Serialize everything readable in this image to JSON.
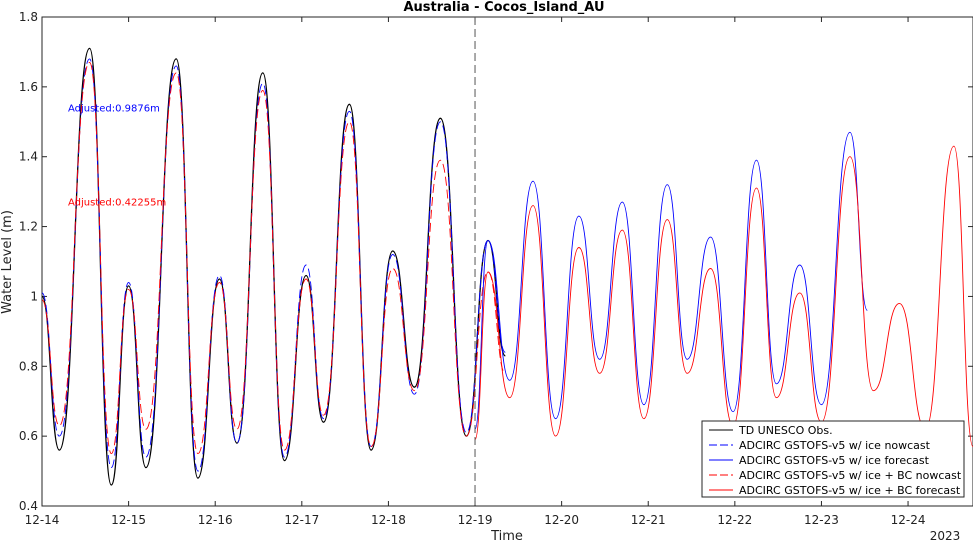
{
  "chart_data": {
    "type": "line",
    "title": "Australia - Cocos_Island_AU",
    "xlabel": "Time",
    "ylabel": "Water Level (m)",
    "xlim": [
      0,
      10.75
    ],
    "ylim": [
      0.4,
      1.8
    ],
    "x_ticks": [
      {
        "value": 0,
        "label": "12-14"
      },
      {
        "value": 1,
        "label": "12-15"
      },
      {
        "value": 2,
        "label": "12-16"
      },
      {
        "value": 3,
        "label": "12-17"
      },
      {
        "value": 4,
        "label": "12-18"
      },
      {
        "value": 5,
        "label": "12-19"
      },
      {
        "value": 6,
        "label": "12-20"
      },
      {
        "value": 7,
        "label": "12-21"
      },
      {
        "value": 8,
        "label": "12-22"
      },
      {
        "value": 9,
        "label": "12-23"
      },
      {
        "value": 10,
        "label": "12-24"
      }
    ],
    "x_year_label": "2023",
    "y_ticks": [
      {
        "value": 0.4,
        "label": "0.4"
      },
      {
        "value": 0.6,
        "label": "0.6"
      },
      {
        "value": 0.8,
        "label": "0.8"
      },
      {
        "value": 1.0,
        "label": "1"
      },
      {
        "value": 1.2,
        "label": "1.2"
      },
      {
        "value": 1.4,
        "label": "1.4"
      },
      {
        "value": 1.6,
        "label": "1.6"
      },
      {
        "value": 1.8,
        "label": "1.8"
      }
    ],
    "nowcast_forecast_split": 5.0,
    "annotations": [
      {
        "text": "Adjusted:0.9876m",
        "x": 0.3,
        "y": 1.53,
        "color": "#0000ff"
      },
      {
        "text": "Adjusted:0.42255m",
        "x": 0.3,
        "y": 1.26,
        "color": "#ff0000"
      }
    ],
    "series": [
      {
        "name": "TD UNESCO Obs.",
        "color": "#000000",
        "dash": "solid",
        "points": [
          [
            0.0,
            1.0
          ],
          [
            0.2,
            0.56
          ],
          [
            0.55,
            1.71
          ],
          [
            0.8,
            0.46
          ],
          [
            1.0,
            1.03
          ],
          [
            1.2,
            0.51
          ],
          [
            1.55,
            1.68
          ],
          [
            1.8,
            0.48
          ],
          [
            2.05,
            1.05
          ],
          [
            2.25,
            0.58
          ],
          [
            2.55,
            1.64
          ],
          [
            2.8,
            0.53
          ],
          [
            3.05,
            1.06
          ],
          [
            3.25,
            0.64
          ],
          [
            3.55,
            1.55
          ],
          [
            3.8,
            0.56
          ],
          [
            4.05,
            1.13
          ],
          [
            4.3,
            0.74
          ],
          [
            4.6,
            1.51
          ],
          [
            4.9,
            0.6
          ],
          [
            5.15,
            1.16
          ],
          [
            5.35,
            0.83
          ]
        ]
      },
      {
        "name": "ADCIRC GSTOFS-v5 w/ ice nowcast",
        "color": "#0000ff",
        "dash": "dashed",
        "points": [
          [
            0.0,
            1.01
          ],
          [
            0.2,
            0.6
          ],
          [
            0.55,
            1.68
          ],
          [
            0.8,
            0.51
          ],
          [
            1.0,
            1.04
          ],
          [
            1.2,
            0.54
          ],
          [
            1.55,
            1.66
          ],
          [
            1.8,
            0.5
          ],
          [
            2.05,
            1.06
          ],
          [
            2.25,
            0.58
          ],
          [
            2.55,
            1.61
          ],
          [
            2.8,
            0.54
          ],
          [
            3.05,
            1.09
          ],
          [
            3.25,
            0.65
          ],
          [
            3.55,
            1.53
          ],
          [
            3.8,
            0.57
          ],
          [
            4.05,
            1.12
          ],
          [
            4.3,
            0.72
          ],
          [
            4.6,
            1.5
          ],
          [
            4.9,
            0.61
          ],
          [
            5.15,
            1.16
          ],
          [
            5.35,
            0.84
          ]
        ]
      },
      {
        "name": "ADCIRC GSTOFS-v5 w/ ice forecast",
        "color": "#0000ff",
        "dash": "solid",
        "points": [
          [
            5.0,
            0.62
          ],
          [
            5.15,
            1.16
          ],
          [
            5.4,
            0.76
          ],
          [
            5.67,
            1.33
          ],
          [
            5.93,
            0.65
          ],
          [
            6.2,
            1.23
          ],
          [
            6.44,
            0.82
          ],
          [
            6.7,
            1.27
          ],
          [
            6.95,
            0.69
          ],
          [
            7.22,
            1.32
          ],
          [
            7.45,
            0.82
          ],
          [
            7.72,
            1.17
          ],
          [
            7.98,
            0.67
          ],
          [
            8.25,
            1.39
          ],
          [
            8.48,
            0.75
          ],
          [
            8.75,
            1.09
          ],
          [
            9.0,
            0.69
          ],
          [
            9.33,
            1.47
          ],
          [
            9.53,
            0.96
          ]
        ]
      },
      {
        "name": "ADCIRC GSTOFS-v5 w/ ice + BC nowcast",
        "color": "#ff0000",
        "dash": "dashed",
        "points": [
          [
            0.0,
            0.99
          ],
          [
            0.2,
            0.63
          ],
          [
            0.55,
            1.67
          ],
          [
            0.8,
            0.55
          ],
          [
            1.0,
            1.02
          ],
          [
            1.2,
            0.62
          ],
          [
            1.55,
            1.64
          ],
          [
            1.8,
            0.55
          ],
          [
            2.05,
            1.04
          ],
          [
            2.25,
            0.62
          ],
          [
            2.55,
            1.59
          ],
          [
            2.8,
            0.56
          ],
          [
            3.05,
            1.05
          ],
          [
            3.25,
            0.66
          ],
          [
            3.55,
            1.5
          ],
          [
            3.8,
            0.57
          ],
          [
            4.05,
            1.08
          ],
          [
            4.3,
            0.73
          ],
          [
            4.6,
            1.39
          ],
          [
            4.9,
            0.6
          ],
          [
            5.15,
            1.07
          ],
          [
            5.35,
            0.78
          ]
        ]
      },
      {
        "name": "ADCIRC GSTOFS-v5 w/ ice + BC forecast",
        "color": "#ff0000",
        "dash": "solid",
        "points": [
          [
            5.0,
            0.59
          ],
          [
            5.15,
            1.07
          ],
          [
            5.4,
            0.71
          ],
          [
            5.67,
            1.26
          ],
          [
            5.93,
            0.6
          ],
          [
            6.2,
            1.14
          ],
          [
            6.44,
            0.78
          ],
          [
            6.7,
            1.19
          ],
          [
            6.95,
            0.65
          ],
          [
            7.22,
            1.22
          ],
          [
            7.45,
            0.78
          ],
          [
            7.72,
            1.08
          ],
          [
            7.98,
            0.63
          ],
          [
            8.25,
            1.31
          ],
          [
            8.48,
            0.71
          ],
          [
            8.75,
            1.01
          ],
          [
            9.0,
            0.64
          ],
          [
            9.33,
            1.4
          ],
          [
            9.6,
            0.73
          ],
          [
            9.9,
            0.98
          ],
          [
            10.2,
            0.62
          ],
          [
            10.53,
            1.43
          ],
          [
            10.75,
            0.57
          ]
        ]
      }
    ],
    "legend_position": "bottom-right"
  }
}
